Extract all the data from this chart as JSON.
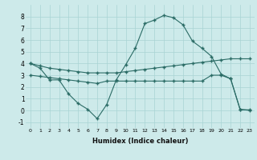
{
  "xlabel": "Humidex (Indice chaleur)",
  "xlim": [
    -0.5,
    23.5
  ],
  "ylim": [
    -1.5,
    9.0
  ],
  "yticks": [
    -1,
    0,
    1,
    2,
    3,
    4,
    5,
    6,
    7,
    8
  ],
  "xticks": [
    0,
    1,
    2,
    3,
    4,
    5,
    6,
    7,
    8,
    9,
    10,
    11,
    12,
    13,
    14,
    15,
    16,
    17,
    18,
    19,
    20,
    21,
    22,
    23
  ],
  "background_color": "#cdeaea",
  "line_color": "#2a6b65",
  "line1_x": [
    0,
    1,
    2,
    3,
    4,
    5,
    6,
    7,
    8,
    9,
    10,
    11,
    12,
    13,
    14,
    15,
    16,
    17,
    18,
    19,
    20,
    21,
    22,
    23
  ],
  "line1_y": [
    4.0,
    3.6,
    2.6,
    2.6,
    1.4,
    0.6,
    0.1,
    -0.7,
    0.5,
    2.6,
    3.9,
    5.3,
    7.4,
    7.7,
    8.1,
    7.9,
    7.3,
    5.9,
    5.3,
    4.6,
    3.1,
    2.7,
    0.1,
    0.0
  ],
  "line2_x": [
    0,
    1,
    2,
    3,
    4,
    5,
    6,
    7,
    8,
    9,
    10,
    11,
    12,
    13,
    14,
    15,
    16,
    17,
    18,
    19,
    20,
    21,
    22,
    23
  ],
  "line2_y": [
    4.0,
    3.8,
    3.6,
    3.5,
    3.4,
    3.3,
    3.2,
    3.2,
    3.2,
    3.2,
    3.3,
    3.4,
    3.5,
    3.6,
    3.7,
    3.8,
    3.9,
    4.0,
    4.1,
    4.2,
    4.3,
    4.4,
    4.4,
    4.4
  ],
  "line3_x": [
    0,
    1,
    2,
    3,
    4,
    5,
    6,
    7,
    8,
    9,
    10,
    11,
    12,
    13,
    14,
    15,
    16,
    17,
    18,
    19,
    20,
    21,
    22,
    23
  ],
  "line3_y": [
    3.0,
    2.9,
    2.8,
    2.7,
    2.6,
    2.5,
    2.4,
    2.3,
    2.5,
    2.5,
    2.5,
    2.5,
    2.5,
    2.5,
    2.5,
    2.5,
    2.5,
    2.5,
    2.5,
    3.0,
    3.0,
    2.7,
    0.05,
    0.05
  ]
}
